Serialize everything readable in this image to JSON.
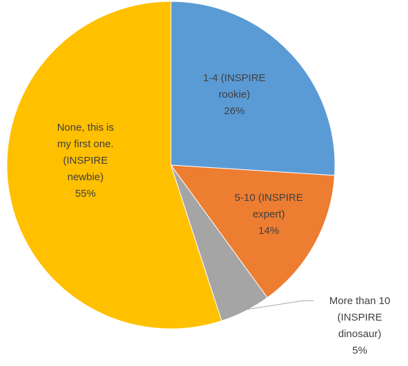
{
  "chart_data": {
    "type": "pie",
    "title": "",
    "slices": [
      {
        "name": "1-4 (INSPIRE rookie)",
        "value": 26,
        "label": "26%",
        "color": "#5b9bd5",
        "label_lines": [
          "1-4 (INSPIRE",
          "rookie)",
          "26%"
        ]
      },
      {
        "name": "5-10 (INSPIRE expert)",
        "value": 14,
        "label": "14%",
        "color": "#ed7d31",
        "label_lines": [
          "5-10 (INSPIRE",
          "expert)",
          "14%"
        ]
      },
      {
        "name": "More than 10 (INSPIRE dinosaur)",
        "value": 5,
        "label": "5%",
        "color": "#a5a5a5",
        "label_lines": [
          "More than 10",
          "(INSPIRE",
          "dinosaur)",
          "5%"
        ]
      },
      {
        "name": "None, this is my first one. (INSPIRE newbie)",
        "value": 55,
        "label": "55%",
        "color": "#ffc000",
        "label_lines": [
          "None, this is",
          "my first one.",
          "(INSPIRE",
          "newbie)",
          "55%"
        ]
      }
    ],
    "start_angle": "12 o'clock",
    "direction": "clockwise",
    "legend": "none",
    "data_labels": "category name and percentage"
  }
}
